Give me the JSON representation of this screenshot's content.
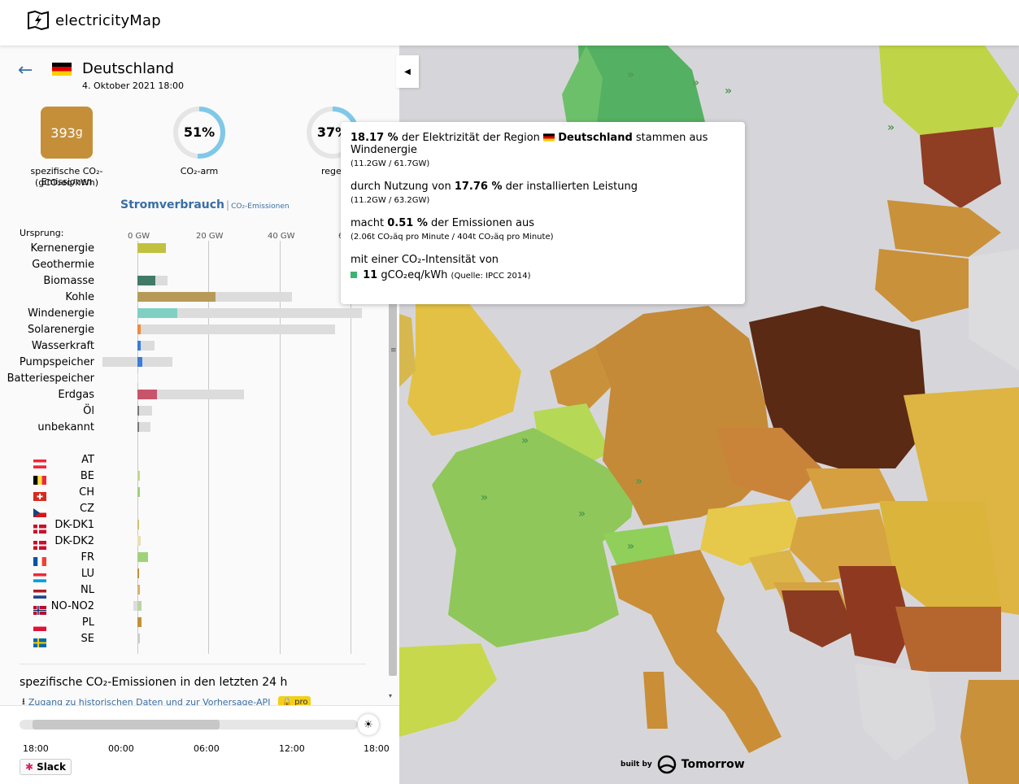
{
  "app": {
    "name": "electricityMap"
  },
  "zone": {
    "name": "Deutschland",
    "datetime": "4. Oktober 2021 18:00",
    "co2_value": "393",
    "co2_unit": "g",
    "co2_label": "spezifische CO₂-Emissionen",
    "co2_sublabel": "(gCO₂eq/kWh)",
    "low_carbon_pct": "51%",
    "low_carbon_fraction": 0.51,
    "low_carbon_label": "CO₂-arm",
    "renewable_pct": "37%",
    "renewable_fraction": 0.37,
    "renewable_label": "regener"
  },
  "tabs": {
    "active": "Stromverbrauch",
    "separator": "|",
    "inactive": "CO₂-Emissionen"
  },
  "origin_label": "Ursprung:",
  "axis_ticks": [
    "0 GW",
    "20 GW",
    "40 GW",
    "6"
  ],
  "sources": [
    {
      "label": "Kernenergie",
      "value_gw": 8.1,
      "capacity_gw": 8.1,
      "color": "#c0c23e"
    },
    {
      "label": "Geothermie",
      "value_gw": 0,
      "capacity_gw": 0,
      "color": "#777"
    },
    {
      "label": "Biomasse",
      "value_gw": 5.0,
      "capacity_gw": 8.5,
      "color": "#417a67"
    },
    {
      "label": "Kohle",
      "value_gw": 22.0,
      "capacity_gw": 43.5,
      "color": "#b89a58"
    },
    {
      "label": "Windenergie",
      "value_gw": 11.2,
      "capacity_gw": 63.2,
      "color": "#7fd0c3"
    },
    {
      "label": "Solarenergie",
      "value_gw": 1.0,
      "capacity_gw": 55.5,
      "color": "#f08a3a"
    },
    {
      "label": "Wasserkraft",
      "value_gw": 1.0,
      "capacity_gw": 4.8,
      "color": "#3a7dd8"
    },
    {
      "label": "Pumpspeicher",
      "value_gw": 1.3,
      "capacity_gw": 9.8,
      "neg_gw": 9.8,
      "color": "#3a7dd8"
    },
    {
      "label": "Batteriespeicher",
      "value_gw": 0,
      "capacity_gw": 0.2,
      "color": "#777"
    },
    {
      "label": "Erdgas",
      "value_gw": 5.4,
      "capacity_gw": 30.0,
      "color": "#c8546b"
    },
    {
      "label": "Öl",
      "value_gw": 0.3,
      "capacity_gw": 4.2,
      "color": "#777"
    },
    {
      "label": "unbekannt",
      "value_gw": 0.3,
      "capacity_gw": 3.6,
      "color": "#777"
    }
  ],
  "exchanges": [
    {
      "code": "AT",
      "value_gw": 0,
      "color": "#ccc",
      "flag": "at"
    },
    {
      "code": "BE",
      "value_gw": 0.8,
      "color": "#c1d88c",
      "flag": "be"
    },
    {
      "code": "CH",
      "value_gw": 0.7,
      "color": "#9fd27a",
      "flag": "ch"
    },
    {
      "code": "CZ",
      "value_gw": 0,
      "color": "#ccc",
      "flag": "cz"
    },
    {
      "code": "DK-DK1",
      "value_gw": 0.2,
      "color": "#d0c070",
      "flag": "dk"
    },
    {
      "code": "DK-DK2",
      "value_gw": 0.9,
      "color": "#e6e1b0",
      "flag": "dk"
    },
    {
      "code": "FR",
      "value_gw": 3.0,
      "color": "#9fd27a",
      "flag": "fr"
    },
    {
      "code": "LU",
      "value_gw": 0.3,
      "color": "#c58f3a",
      "flag": "lu"
    },
    {
      "code": "NL",
      "value_gw": 0.6,
      "color": "#d6b06a",
      "flag": "nl"
    },
    {
      "code": "NO-NO2",
      "value_gw": 1.2,
      "neg_gw": 1.2,
      "color": "#bcd3a8",
      "flag": "no"
    },
    {
      "code": "PL",
      "value_gw": 1.2,
      "color": "#c58f3a",
      "flag": "pl"
    },
    {
      "code": "SE",
      "value_gw": 0.6,
      "color": "#ccc",
      "flag": "se"
    }
  ],
  "history": {
    "title": "spezifische CO₂-Emissionen in den letzten 24 h",
    "link": "Zugang zu historischen Daten und zur Vorhersage-API",
    "badge": "pro"
  },
  "timeline": {
    "ticks": [
      "18:00",
      "00:00",
      "06:00",
      "12:00",
      "18:00"
    ]
  },
  "slack": "Slack",
  "tooltip": {
    "l1_pct": "18.17 %",
    "l1_a": "der Elektrizität der Region",
    "l1_zone": "Deutschland",
    "l1_b": "stammen aus Windenergie",
    "l1_sub": "(11.2GW / 61.7GW)",
    "l2_a": "durch Nutzung von",
    "l2_pct": "17.76 %",
    "l2_b": "der installierten Leistung",
    "l2_sub": "(11.2GW / 63.2GW)",
    "l3_a": "macht",
    "l3_pct": "0.51 %",
    "l3_b": "der Emissionen aus",
    "l3_sub": "(2.06t CO₂äq pro Minute / 404t CO₂äq pro Minute)",
    "l4_a": "mit einer CO₂-Intensität von",
    "l4_val": "11",
    "l4_unit": "gCO₂eq/kWh",
    "l4_src": "(Quelle: IPCC 2014)"
  },
  "footer": {
    "built_by": "built by",
    "company": "Tomorrow"
  },
  "colors": {
    "accent": "#3a6ea5",
    "co2_box": "#c58f3a",
    "ring": "#7fc8e8",
    "wind_square": "#3cb371"
  }
}
